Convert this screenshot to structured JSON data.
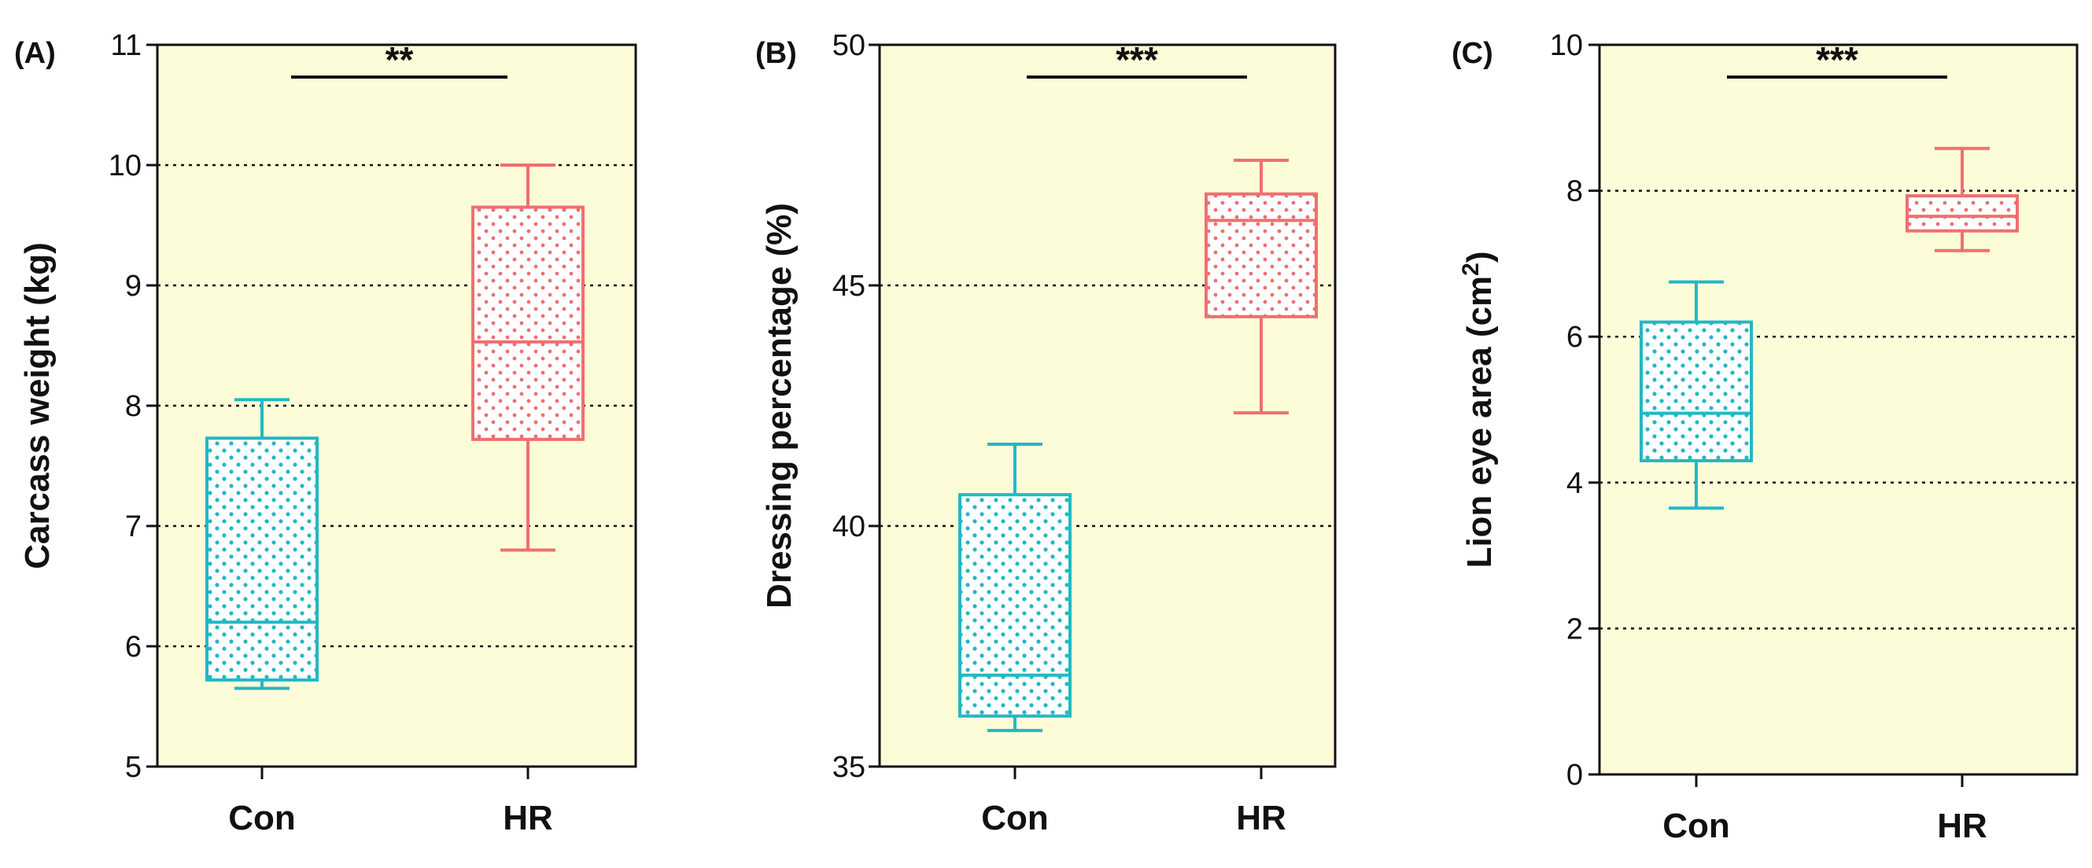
{
  "colors": {
    "con": "#22b8c4",
    "hr": "#ef6f6f",
    "plot_bg": "#fdfcd9",
    "axis": "#111111"
  },
  "chart_data": [
    {
      "panel_label": "(A)",
      "type": "boxplot",
      "ylabel": "Carcass weight (kg)",
      "ylim": [
        5,
        11
      ],
      "yticks": [
        "5",
        "6",
        "7",
        "8",
        "9",
        "10",
        "11"
      ],
      "gridlines": [
        6,
        7,
        8,
        9,
        10
      ],
      "categories": [
        "Con",
        "HR"
      ],
      "series": [
        {
          "name": "Con",
          "min": 5.65,
          "q1": 5.72,
          "median": 6.2,
          "q3": 7.73,
          "max": 8.05
        },
        {
          "name": "HR",
          "min": 6.8,
          "q1": 7.72,
          "median": 8.53,
          "q3": 9.65,
          "max": 10.0
        }
      ],
      "significance": "**"
    },
    {
      "panel_label": "(B)",
      "type": "boxplot",
      "ylabel": "Dressing percentage (%)",
      "ylim": [
        35,
        50
      ],
      "yticks": [
        "35",
        "40",
        "45",
        "50"
      ],
      "gridlines": [
        40,
        45
      ],
      "categories": [
        "Con",
        "HR"
      ],
      "series": [
        {
          "name": "Con",
          "min": 35.75,
          "q1": 36.05,
          "median": 36.9,
          "q3": 40.65,
          "max": 41.7
        },
        {
          "name": "HR",
          "min": 42.35,
          "q1": 44.35,
          "median": 46.35,
          "q3": 46.9,
          "max": 47.6
        }
      ],
      "significance": "***"
    },
    {
      "panel_label": "(C)",
      "type": "boxplot",
      "ylabel": "Lion eye area (cm",
      "ylabel_sup": "2",
      "ylabel_end": ")",
      "ylim": [
        0,
        10
      ],
      "yticks": [
        "0",
        "2",
        "4",
        "6",
        "8",
        "10"
      ],
      "gridlines": [
        2,
        4,
        6,
        8
      ],
      "categories": [
        "Con",
        "HR"
      ],
      "series": [
        {
          "name": "Con",
          "min": 3.65,
          "q1": 4.3,
          "median": 4.95,
          "q3": 6.2,
          "max": 6.75
        },
        {
          "name": "HR",
          "min": 7.18,
          "q1": 7.45,
          "median": 7.65,
          "q3": 7.93,
          "max": 8.58
        }
      ],
      "significance": "***"
    }
  ]
}
